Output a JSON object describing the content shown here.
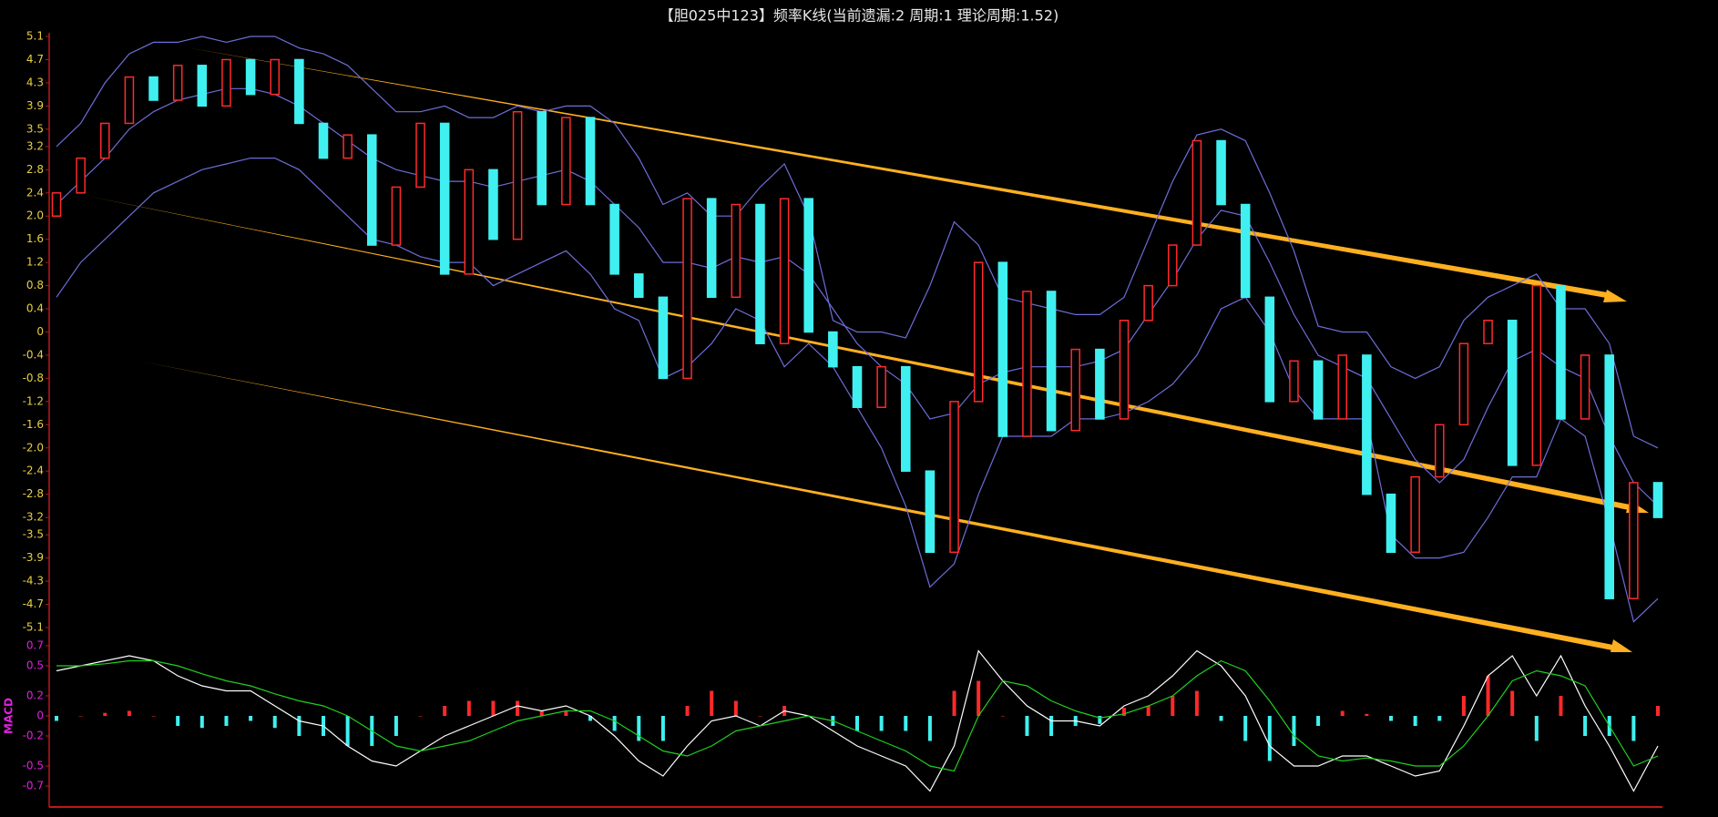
{
  "chart_data": [
    {
      "type": "candlestick",
      "title": "【胆025中123】频率K线(当前遗漏:2 周期:1 理论周期:1.52)",
      "open": [
        2.0,
        2.4,
        3.0,
        3.6,
        4.4,
        4.0,
        4.6,
        3.9,
        4.7,
        4.1,
        4.7,
        3.6,
        3.0,
        3.4,
        1.5,
        2.5,
        3.6,
        1.0,
        2.8,
        1.6,
        3.8,
        2.2,
        3.7,
        2.2,
        1.0,
        0.6,
        -0.8,
        2.3,
        0.6,
        2.2,
        -0.2,
        2.3,
        0.0,
        -0.6,
        -1.3,
        -0.6,
        -2.4,
        -3.8,
        -1.2,
        1.2,
        -1.8,
        0.7,
        -1.7,
        -0.3,
        -1.5,
        0.2,
        0.8,
        1.5,
        3.3,
        2.2,
        0.6,
        -1.2,
        -0.5,
        -1.5,
        -0.4,
        -2.8,
        -3.8,
        -2.5,
        -1.6,
        -0.2,
        0.2,
        -2.3,
        0.8,
        -1.5,
        -0.4,
        -4.6,
        -2.6
      ],
      "close": [
        2.4,
        3.0,
        3.6,
        4.4,
        4.0,
        4.6,
        3.9,
        4.7,
        4.1,
        4.7,
        3.6,
        3.0,
        3.4,
        1.5,
        2.5,
        3.6,
        1.0,
        2.8,
        1.6,
        3.8,
        2.2,
        3.7,
        2.2,
        1.0,
        0.6,
        -0.8,
        2.3,
        0.6,
        2.2,
        -0.2,
        2.3,
        0.0,
        -0.6,
        -1.3,
        -0.6,
        -2.4,
        -3.8,
        -1.2,
        1.2,
        -1.8,
        0.7,
        -1.7,
        -0.3,
        -1.5,
        0.2,
        0.8,
        1.5,
        3.3,
        2.2,
        0.6,
        -1.2,
        -0.5,
        -1.5,
        -0.4,
        -2.8,
        -3.8,
        -2.5,
        -1.6,
        -0.2,
        0.2,
        -2.3,
        0.8,
        -1.5,
        -0.4,
        -4.6,
        -2.6,
        -3.2
      ],
      "bands": {
        "upper": [
          3.2,
          3.6,
          4.3,
          4.8,
          5.0,
          5.0,
          5.1,
          5.0,
          5.1,
          5.1,
          4.9,
          4.8,
          4.6,
          4.2,
          3.8,
          3.8,
          3.9,
          3.7,
          3.7,
          3.9,
          3.8,
          3.9,
          3.9,
          3.6,
          3.0,
          2.2,
          2.4,
          2.0,
          2.0,
          2.5,
          2.9,
          2.0,
          0.2,
          0.0,
          0.0,
          -0.1,
          0.8,
          1.9,
          1.5,
          0.6,
          0.5,
          0.4,
          0.3,
          0.3,
          0.6,
          1.6,
          2.6,
          3.4,
          3.5,
          3.3,
          2.4,
          1.4,
          0.1,
          0.0,
          0.0,
          -0.6,
          -0.8,
          -0.6,
          0.2,
          0.6,
          0.8,
          1.0,
          0.4,
          0.4,
          -0.2,
          -1.8,
          -2.0
        ],
        "mid": [
          2.2,
          2.6,
          3.0,
          3.5,
          3.8,
          4.0,
          4.1,
          4.2,
          4.2,
          4.1,
          3.9,
          3.6,
          3.3,
          3.0,
          2.8,
          2.7,
          2.6,
          2.6,
          2.5,
          2.6,
          2.7,
          2.8,
          2.6,
          2.2,
          1.8,
          1.2,
          1.2,
          1.1,
          1.3,
          1.2,
          1.3,
          1.0,
          0.4,
          -0.2,
          -0.6,
          -0.9,
          -1.5,
          -1.4,
          -0.9,
          -0.7,
          -0.6,
          -0.6,
          -0.6,
          -0.5,
          -0.3,
          0.3,
          0.9,
          1.6,
          2.1,
          2.0,
          1.2,
          0.3,
          -0.4,
          -0.6,
          -0.8,
          -1.5,
          -2.2,
          -2.6,
          -2.2,
          -1.3,
          -0.5,
          -0.3,
          -0.6,
          -0.8,
          -1.8,
          -2.6,
          -3.0
        ],
        "lower": [
          0.6,
          1.2,
          1.6,
          2.0,
          2.4,
          2.6,
          2.8,
          2.9,
          3.0,
          3.0,
          2.8,
          2.4,
          2.0,
          1.6,
          1.5,
          1.3,
          1.2,
          1.2,
          0.8,
          1.0,
          1.2,
          1.4,
          1.0,
          0.4,
          0.2,
          -0.8,
          -0.6,
          -0.2,
          0.4,
          0.2,
          -0.6,
          -0.2,
          -0.6,
          -1.3,
          -2.0,
          -3.0,
          -4.4,
          -4.0,
          -2.8,
          -1.8,
          -1.8,
          -1.8,
          -1.5,
          -1.5,
          -1.4,
          -1.2,
          -0.9,
          -0.4,
          0.4,
          0.6,
          0.0,
          -1.0,
          -1.5,
          -1.5,
          -1.5,
          -3.5,
          -3.9,
          -3.9,
          -3.8,
          -3.2,
          -2.5,
          -2.5,
          -1.5,
          -1.8,
          -3.3,
          -5.0,
          -4.6
        ]
      },
      "up_color": "#ff2a2a",
      "down_color": "#40f0f0",
      "band_color": "#6d6dd8",
      "ylim": [
        -5.1,
        5.1
      ],
      "yticks": [
        5.1,
        4.7,
        4.3,
        3.9,
        3.5,
        3.2,
        2.8,
        2.4,
        {
          "value": 2,
          "label": "2.0"
        },
        1.6,
        1.2,
        0.8,
        0.4,
        0,
        -0.4,
        -0.8,
        -1.2,
        -1.6,
        {
          "value": -2,
          "label": "-2.0"
        },
        -2.4,
        -2.8,
        -3.2,
        -3.5,
        -3.9,
        -4.3,
        -4.7,
        -5.1
      ]
    },
    {
      "type": "macd",
      "title": "MACD",
      "histogram": [
        -0.05,
        0,
        0.03,
        0.05,
        0,
        -0.1,
        -0.12,
        -0.1,
        -0.05,
        -0.12,
        -0.2,
        -0.2,
        -0.3,
        -0.3,
        -0.2,
        0,
        0.1,
        0.15,
        0.15,
        0.15,
        0.05,
        0.05,
        -0.05,
        -0.15,
        -0.25,
        -0.25,
        0.1,
        0.25,
        0.15,
        0,
        0.1,
        0,
        -0.1,
        -0.15,
        -0.15,
        -0.15,
        -0.25,
        0.25,
        0.35,
        0,
        -0.2,
        -0.2,
        -0.1,
        -0.08,
        0.08,
        0.1,
        0.2,
        0.25,
        -0.05,
        -0.25,
        -0.45,
        -0.3,
        -0.1,
        0.05,
        0.02,
        -0.05,
        -0.1,
        -0.05,
        0.2,
        0.4,
        0.25,
        -0.25,
        0.2,
        -0.2,
        -0.2,
        -0.25,
        0.1
      ],
      "dif": [
        0.45,
        0.5,
        0.55,
        0.6,
        0.55,
        0.4,
        0.3,
        0.25,
        0.25,
        0.1,
        -0.05,
        -0.1,
        -0.3,
        -0.45,
        -0.5,
        -0.35,
        -0.2,
        -0.1,
        0.0,
        0.1,
        0.05,
        0.1,
        0.0,
        -0.2,
        -0.45,
        -0.6,
        -0.3,
        -0.05,
        0.0,
        -0.1,
        0.05,
        0.0,
        -0.15,
        -0.3,
        -0.4,
        -0.5,
        -0.75,
        -0.3,
        0.65,
        0.35,
        0.1,
        -0.05,
        -0.05,
        -0.1,
        0.1,
        0.2,
        0.4,
        0.65,
        0.5,
        0.2,
        -0.3,
        -0.5,
        -0.5,
        -0.4,
        -0.4,
        -0.5,
        -0.6,
        -0.55,
        -0.1,
        0.4,
        0.6,
        0.2,
        0.6,
        0.1,
        -0.3,
        -0.75,
        -0.3
      ],
      "dea": [
        0.5,
        0.5,
        0.52,
        0.55,
        0.55,
        0.5,
        0.42,
        0.35,
        0.3,
        0.22,
        0.15,
        0.1,
        0.0,
        -0.15,
        -0.3,
        -0.35,
        -0.3,
        -0.25,
        -0.15,
        -0.05,
        0.0,
        0.05,
        0.05,
        -0.05,
        -0.2,
        -0.35,
        -0.4,
        -0.3,
        -0.15,
        -0.1,
        -0.05,
        0.0,
        -0.05,
        -0.15,
        -0.25,
        -0.35,
        -0.5,
        -0.55,
        0.0,
        0.35,
        0.3,
        0.15,
        0.05,
        -0.02,
        0.02,
        0.1,
        0.2,
        0.4,
        0.55,
        0.45,
        0.15,
        -0.2,
        -0.4,
        -0.45,
        -0.42,
        -0.45,
        -0.5,
        -0.5,
        -0.3,
        0.0,
        0.35,
        0.45,
        0.4,
        0.3,
        -0.1,
        -0.5,
        -0.4
      ],
      "up_color": "#ff2a2a",
      "down_color": "#40f0f0",
      "dif_color": "#ffffff",
      "dea_color": "#20d020",
      "ylim": [
        -0.7,
        0.7
      ],
      "yticks": [
        0.7,
        0.5,
        0.2,
        0,
        -0.2,
        -0.5,
        -0.7
      ]
    }
  ]
}
